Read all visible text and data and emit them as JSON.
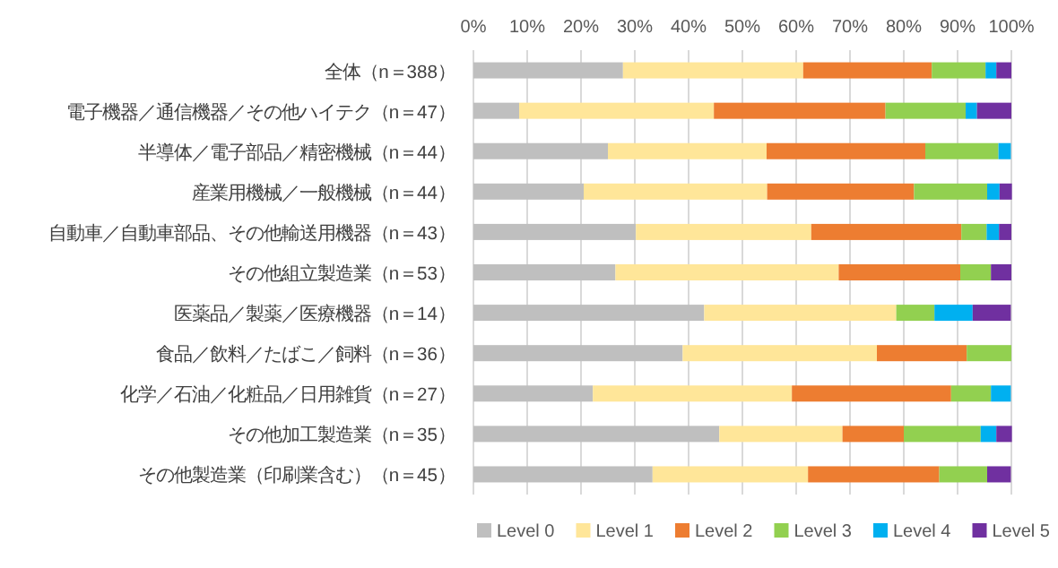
{
  "chart_data": {
    "type": "bar",
    "orientation": "horizontal",
    "stacked": true,
    "grid": "x",
    "legend": "bottom",
    "categories": [
      "全体（n＝388）",
      "電子機器／通信機器／その他ハイテク（n＝47）",
      "半導体／電子部品／精密機械（n＝44）",
      "産業用機械／一般機械（n＝44）",
      "自動車／自動車部品、その他輸送用機器（n＝43）",
      "その他組立製造業（n＝53）",
      "医薬品／製薬／医療機器（n＝14）",
      "食品／飲料／たばこ／飼料（n＝36）",
      "化学／石油／化粧品／日用雑貨（n＝27）",
      "その他加工製造業（n＝35）",
      "その他製造業（印刷業含む）（n＝45）"
    ],
    "xlim": [
      0,
      100
    ],
    "xticks": [
      {
        "value": 0,
        "label": "0%"
      },
      {
        "value": 10,
        "label": "10%"
      },
      {
        "value": 20,
        "label": "20%"
      },
      {
        "value": 30,
        "label": "30%"
      },
      {
        "value": 40,
        "label": "40%"
      },
      {
        "value": 50,
        "label": "50%"
      },
      {
        "value": 60,
        "label": "60%"
      },
      {
        "value": 70,
        "label": "70%"
      },
      {
        "value": 80,
        "label": "80%"
      },
      {
        "value": 90,
        "label": "90%"
      },
      {
        "value": 100,
        "label": "100%"
      }
    ],
    "series": [
      {
        "name": "Level 0",
        "color": "#bfbfbf",
        "values": [
          27.8,
          8.5,
          25.0,
          20.5,
          30.2,
          26.4,
          42.9,
          38.9,
          22.2,
          45.7,
          33.3
        ]
      },
      {
        "name": "Level 1",
        "color": "#ffe699",
        "values": [
          33.5,
          36.2,
          29.5,
          34.1,
          32.6,
          41.5,
          35.7,
          36.1,
          37.0,
          22.9,
          28.9
        ]
      },
      {
        "name": "Level 2",
        "color": "#ed7d31",
        "values": [
          23.9,
          31.9,
          29.5,
          27.3,
          27.9,
          22.6,
          0,
          16.7,
          29.6,
          11.4,
          24.4
        ]
      },
      {
        "name": "Level 3",
        "color": "#92d050",
        "values": [
          10.0,
          14.9,
          13.6,
          13.6,
          4.7,
          5.7,
          7.1,
          8.3,
          7.4,
          14.3,
          8.9
        ]
      },
      {
        "name": "Level 4",
        "color": "#00b0f0",
        "values": [
          2.0,
          2.1,
          2.3,
          2.3,
          2.3,
          0,
          7.1,
          0,
          3.7,
          2.9,
          0
        ]
      },
      {
        "name": "Level 5",
        "color": "#7030a0",
        "values": [
          2.8,
          6.4,
          0,
          2.3,
          2.3,
          3.8,
          7.1,
          0,
          0,
          2.9,
          4.4
        ]
      }
    ]
  }
}
